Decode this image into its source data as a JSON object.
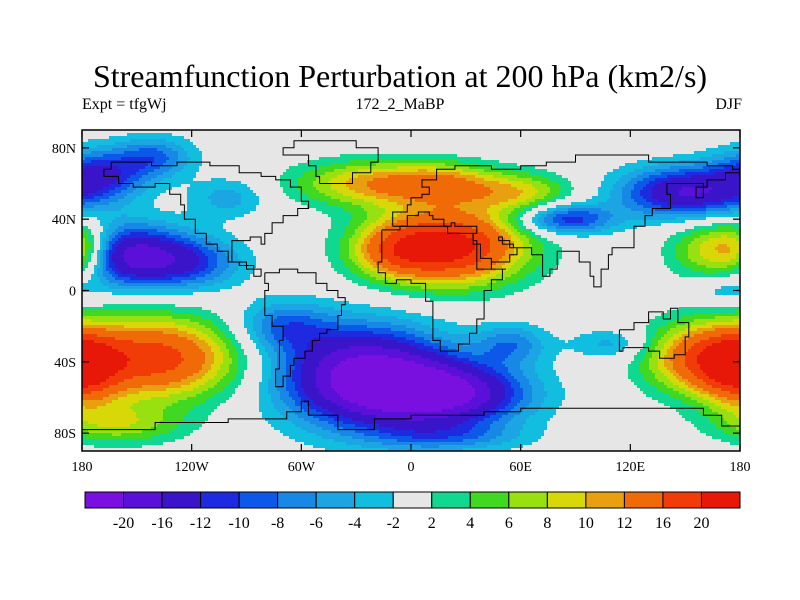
{
  "chart_data": {
    "type": "heatmap",
    "title": "Streamfunction Perturbation at 200 hPa (km2/s)",
    "left_label": "Expt = tfgWj",
    "center_label": "172_2_MaBP",
    "right_label": "DJF",
    "x_range": [
      -180,
      180
    ],
    "y_range": [
      -90,
      90
    ],
    "x_ticks": [
      {
        "value": -180,
        "label": "180"
      },
      {
        "value": -120,
        "label": "120W"
      },
      {
        "value": -60,
        "label": "60W"
      },
      {
        "value": 0,
        "label": "0"
      },
      {
        "value": 60,
        "label": "60E"
      },
      {
        "value": 120,
        "label": "120E"
      },
      {
        "value": 180,
        "label": "180"
      }
    ],
    "y_ticks": [
      {
        "value": 80,
        "label": "80N"
      },
      {
        "value": 40,
        "label": "40N"
      },
      {
        "value": 0,
        "label": "0"
      },
      {
        "value": -40,
        "label": "40S"
      },
      {
        "value": -80,
        "label": "80S"
      }
    ],
    "contour_levels": [
      -20,
      -16,
      -12,
      -10,
      -8,
      -6,
      -4,
      -2,
      2,
      4,
      6,
      8,
      10,
      12,
      16,
      20
    ],
    "colorbar_labels": [
      "-20",
      "-16",
      "-12",
      "-10",
      "-8",
      "-6",
      "-4",
      "-2",
      "2",
      "4",
      "6",
      "8",
      "10",
      "12",
      "16",
      "20"
    ],
    "colors": [
      "#7a10e0",
      "#5a10d8",
      "#3a14c8",
      "#1d2ae0",
      "#0c58e8",
      "#1888e6",
      "#1ba6e3",
      "#12bee0",
      "#e6e6e6",
      "#10d890",
      "#40d820",
      "#98e010",
      "#d8d808",
      "#e8a010",
      "#f06a08",
      "#f23c08",
      "#e81808"
    ],
    "field_features": [
      {
        "lon": 20,
        "lat": 25,
        "value": 22,
        "description": "strong positive over North Africa"
      },
      {
        "lon": -25,
        "lat": -48,
        "value": -22,
        "description": "strong negative over South Atlantic / South America"
      },
      {
        "lon": 20,
        "lat": -58,
        "value": -19,
        "description": "negative south of Africa"
      },
      {
        "lon": -160,
        "lat": 20,
        "value": -19,
        "description": "negative over central Pacific north"
      },
      {
        "lon": 160,
        "lat": 18,
        "value": 17,
        "description": "positive over western Pacific"
      },
      {
        "lon": -140,
        "lat": -38,
        "value": 18,
        "description": "positive over South Pacific"
      },
      {
        "lon": 160,
        "lat": -38,
        "value": 15,
        "description": "positive near New Zealand"
      },
      {
        "lon": -20,
        "lat": 60,
        "value": 11,
        "description": "positive over North Atlantic / Europe"
      },
      {
        "lon": 150,
        "lat": 55,
        "value": -16,
        "description": "negative over north-east Asia"
      },
      {
        "lon": -170,
        "lat": 65,
        "value": -10,
        "description": "negative over Bering region"
      },
      {
        "lon": 85,
        "lat": 40,
        "value": -12,
        "description": "negative over central Asia"
      }
    ]
  }
}
